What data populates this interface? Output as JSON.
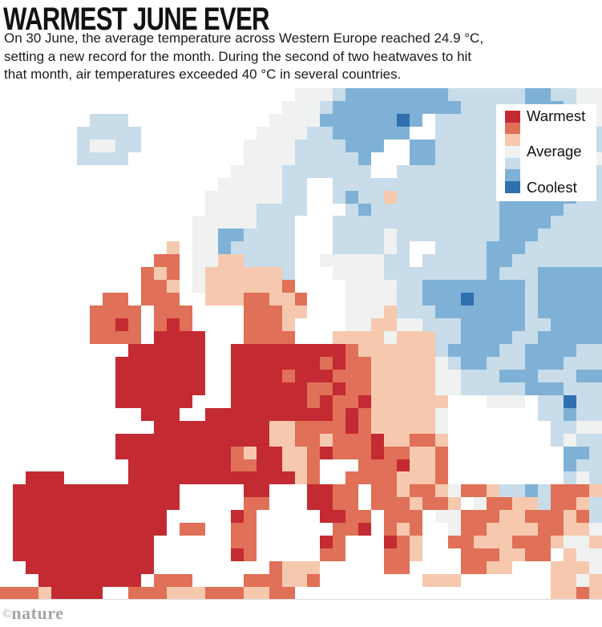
{
  "header": {
    "title": "WARMEST JUNE EVER",
    "lines": [
      "On 30 June, the average temperature across Western Europe reached 24.9 °C,",
      "setting a new record for the month. During the second of two heatwaves to hit",
      "that month, air temperatures exceeded 40 °C in several countries."
    ]
  },
  "legend": {
    "labels": [
      "Warmest",
      "Average",
      "Coolest"
    ],
    "swatch_colors": [
      "#c42a32",
      "#e07057",
      "#f6c9ae",
      "#eff2f1",
      "#c8dce9",
      "#7fb1d6",
      "#2f70af"
    ]
  },
  "map": {
    "cols": 47,
    "palette": {
      "R": "#c42a32",
      "r": "#e07057",
      "p": "#f6c9ae",
      "w": "#eff2f1",
      "b": "#c8dce9",
      "B": "#7fb1d6",
      "D": "#2f70af",
      ".": "transparent"
    },
    "rows": [
      ".......................wwwbBBBBBBBBbbbbbbBBbbww",
      "......................wwwbBBBBBBBBBBbbbbbBBBbww",
      ".......bbb...........wwwwBBBBBBDB.bbbbbbbBDBbbw",
      "......bbbbb.........wwwwbbBBBBBB..bbbbbbBBBBbbb",
      "......bwwbb........wwwwbbbbBBB..BBbbbbbbBBBBBbb",
      "......bbbb.........wwwwbbbbbB...BBbbbbbBBBBBBbw",
      "..................wwwwbbbbbbb..bbbbbbbbBBBBBBbb",
      ".................wwwwwbb..bbbbbbbbbbbbbBBBBBBbb",
      "................wwwwwwbb..bBbbpbbbbbbbbBBBBBBbb",
      "................wwwwbbbb...bBbbbbbbbbbbBBBBBbbb",
      "...............wwwwwbbb...bbbbbbbbbbbbbBBBBbbbb",
      "...............wwBBbbbb...bbbbwbbbbbbbbBBBbbbbb",
      ".............p.wwBbbbbb...bbbbwb..bbbbBBBbbbbbb",
      "............rr.wwppbbbb..wwwwwbb.bbbbbBBbbbbbbb",
      "...........rpr.wppppppb...wwwwbbbbbbbbBbbbBBBBB",
      "...........rrp.wppppppr....wwwwbbBBBBBBBBbBBBBB",
      "........rr.rrr..ppprrppr...wwwwbbBBBDBBBBbBBBBB",
      ".......rrrr.rrr....rrrpp...wwwpbbbBBBBBBBbBBBBB",
      ".......rrRr.rRr....rrrp....wwppwwbbbBBBBBbbBBBB",
      ".......rrrr.RRRR...rrrr...ppppwpppbbBBBBbbBBBBB",
      "..........RRRRRR..RRRRRRRRRrppppppbBBBBbbBBBBbb",
      ".........RRRRRRR..RRRRRRRrRrrpppppwbBBbbbBBBbbb",
      ".........RRRRRRR..RRRRrRRRrrrpppppwwbbbBBBbbbBB",
      ".........RRRRRRR..RRRRRRrrRrrpppppwwbbbbbBBBbbb",
      ".........RRRRRR...RRRRRRrRrrRpppppp...www.bbDbb",
      "...........RRR..RRRRRRRRRRrRrpppppw.......bbBbb",
      "............RRRRRRRRRpprrrrRrpppppw........bbww",
      ".........RRRRRRRRRRRRpprrprrrRpprrp........bwbb",
      ".........RRRRRRRRRrpRRpprRrrrRrrppr.........BBb",
      "..........RRRRRRRRrrRRppr...rrrRppr.........Bbb",
      "..RRR.....RRRRRRRRRRRRRpr..rrrrpppr.........bwb",
      ".RRRRRRRRRRRRR.....RR...RRrr.rrprrpwrrpbbBbrrrp",
      ".RRRRRRRRRRRRR.....rr...RRrr.rrrprrp.wrrppbrrpb",
      ".RRRRRRRRRRRR.....Rr.....RRrr.rrr.wwrrrpprrrprb",
      ".RRRRRRRRRRRR.rr..rr......rrR.rpr..wrrpppprrppw",
      ".RRRRRRRRRRR......rr.....Rr...Rrp..rrppprrrpwwp",
      ".RRRRRRRRRRR......Rr.....rr...rrp...rrrpprr.pww",
      "..RRRRRRRRRR.........rppp.....rr....rrpp...pppw",
      "...RRRRRRRR.rrr....rrrppr........ppp.......ppwp",
      "rrrpRRRR..rrrppprrrpprr....................pprp"
    ]
  },
  "footer": {
    "copyright": "©",
    "brand": "nature"
  }
}
